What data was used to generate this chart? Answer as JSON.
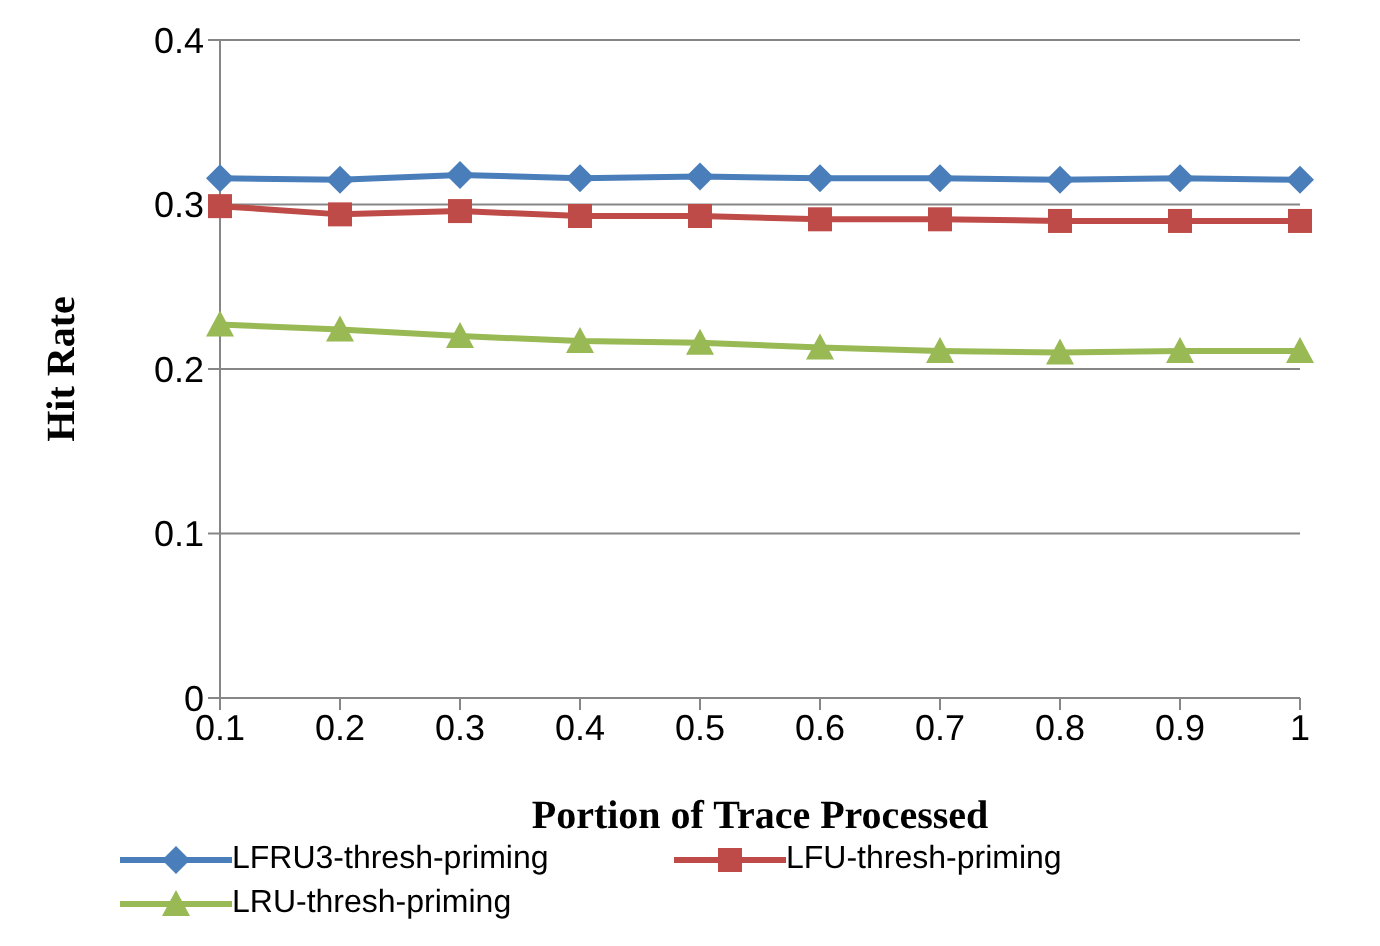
{
  "chart_data": {
    "type": "line",
    "xlabel": "Portion of Trace Processed",
    "ylabel": "Hit Rate",
    "categories": [
      "0.1",
      "0.2",
      "0.3",
      "0.4",
      "0.5",
      "0.6",
      "0.7",
      "0.8",
      "0.9",
      "1"
    ],
    "series": [
      {
        "name": "LFRU3-thresh-priming",
        "color": "#4a7ebb",
        "marker": "diamond",
        "values": [
          0.316,
          0.315,
          0.318,
          0.316,
          0.317,
          0.316,
          0.316,
          0.315,
          0.316,
          0.315
        ]
      },
      {
        "name": "LFU-thresh-priming",
        "color": "#be4b48",
        "marker": "square",
        "values": [
          0.299,
          0.294,
          0.296,
          0.293,
          0.293,
          0.291,
          0.291,
          0.29,
          0.29,
          0.29
        ]
      },
      {
        "name": "LRU-thresh-priming",
        "color": "#98b954",
        "marker": "triangle",
        "values": [
          0.227,
          0.224,
          0.22,
          0.217,
          0.216,
          0.213,
          0.211,
          0.21,
          0.211,
          0.211
        ]
      }
    ],
    "ylim": [
      0,
      0.4
    ],
    "yticks": [
      0,
      0.1,
      0.2,
      0.3,
      0.4
    ],
    "grid": "y",
    "legend": "bottom"
  }
}
